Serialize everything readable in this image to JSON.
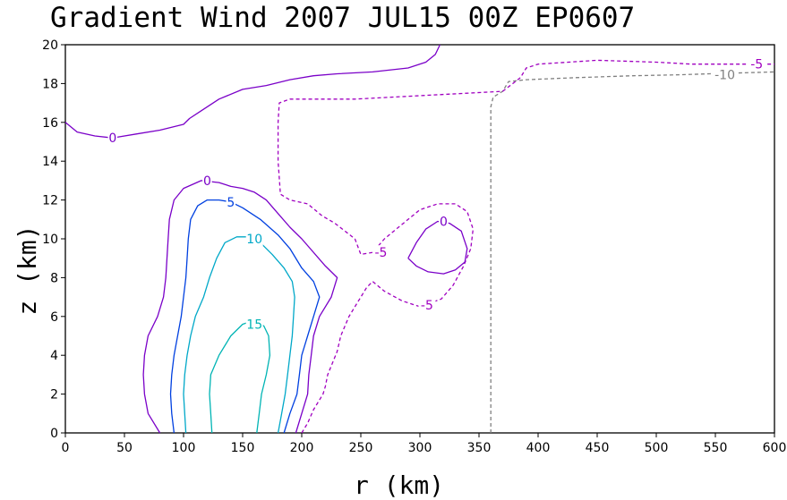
{
  "chart_data": {
    "type": "contour",
    "title": "Gradient Wind 2007 JUL15 00Z  EP0607",
    "xlabel": "r (km)",
    "ylabel": "z (km)",
    "xlim": [
      0,
      600
    ],
    "ylim": [
      0,
      20
    ],
    "x_ticks": [
      "0",
      "50",
      "100",
      "150",
      "200",
      "250",
      "300",
      "350",
      "400",
      "450",
      "500",
      "550",
      "600"
    ],
    "y_ticks": [
      "0",
      "2",
      "4",
      "6",
      "8",
      "10",
      "12",
      "14",
      "16",
      "18",
      "20"
    ],
    "grid": false,
    "contours": [
      {
        "level": "-10",
        "color": "#808080",
        "dashed": true,
        "points": [
          [
            360,
            0
          ],
          [
            360,
            16.8
          ],
          [
            362,
            17.3
          ],
          [
            370,
            17.6
          ],
          [
            375,
            18.1
          ],
          [
            390,
            18.2
          ],
          [
            430,
            18.3
          ],
          [
            480,
            18.4
          ],
          [
            520,
            18.45
          ],
          [
            545,
            18.5
          ],
          [
            600,
            18.6
          ]
        ],
        "label": {
          "text": "-10",
          "at": [
            558,
            18.45
          ]
        }
      },
      {
        "level": "-5",
        "color": "#a000c0",
        "dashed": true,
        "points": [
          [
            200,
            0
          ],
          [
            205,
            0.5
          ],
          [
            210,
            1.2
          ],
          [
            218,
            2.0
          ],
          [
            220,
            2.4
          ],
          [
            222,
            3.0
          ],
          [
            230,
            4.2
          ],
          [
            233,
            5.0
          ],
          [
            240,
            6.0
          ],
          [
            245,
            6.5
          ],
          [
            255,
            7.5
          ],
          [
            260,
            7.8
          ],
          [
            270,
            7.3
          ],
          [
            285,
            6.8
          ],
          [
            300,
            6.5
          ],
          [
            318,
            6.9
          ],
          [
            328,
            7.6
          ],
          [
            337,
            8.6
          ],
          [
            343,
            9.5
          ],
          [
            345,
            10.5
          ],
          [
            340,
            11.4
          ],
          [
            330,
            11.8
          ],
          [
            315,
            11.8
          ],
          [
            300,
            11.5
          ],
          [
            280,
            10.5
          ],
          [
            270,
            10.0
          ],
          [
            260,
            9.3
          ],
          [
            250,
            9.2
          ],
          [
            245,
            10.0
          ],
          [
            228,
            10.8
          ],
          [
            217,
            11.2
          ],
          [
            205,
            11.8
          ],
          [
            190,
            12.0
          ],
          [
            182,
            12.3
          ],
          [
            180,
            14.0
          ],
          [
            180,
            16.0
          ],
          [
            181,
            17.0
          ],
          [
            190,
            17.2
          ],
          [
            245,
            17.2
          ],
          [
            370,
            17.6
          ],
          [
            385,
            18.3
          ],
          [
            390,
            18.8
          ],
          [
            400,
            19.0
          ],
          [
            450,
            19.2
          ],
          [
            500,
            19.1
          ],
          [
            530,
            19.0
          ],
          [
            550,
            19.0
          ],
          [
            600,
            19.0
          ]
        ],
        "label": {
          "text": "-5",
          "at": [
            585,
            19.0
          ]
        }
      },
      {
        "level": "-5",
        "color": "#a000c0",
        "dashed": true,
        "points": [],
        "label": {
          "text": "-5",
          "at": [
            267,
            9.3
          ]
        }
      },
      {
        "level": "-5",
        "color": "#a000c0",
        "dashed": true,
        "points": [],
        "label": {
          "text": "-5",
          "at": [
            306,
            6.6
          ]
        }
      },
      {
        "level": "0",
        "color": "#7a00c8",
        "dashed": false,
        "points": [
          [
            0,
            16.0
          ],
          [
            10,
            15.5
          ],
          [
            25,
            15.3
          ],
          [
            40,
            15.2
          ],
          [
            60,
            15.4
          ],
          [
            80,
            15.6
          ],
          [
            100,
            15.9
          ],
          [
            105,
            16.2
          ],
          [
            115,
            16.6
          ],
          [
            130,
            17.2
          ],
          [
            150,
            17.7
          ],
          [
            170,
            17.9
          ],
          [
            190,
            18.2
          ],
          [
            210,
            18.4
          ],
          [
            230,
            18.5
          ],
          [
            260,
            18.6
          ],
          [
            290,
            18.8
          ],
          [
            305,
            19.1
          ],
          [
            313,
            19.5
          ],
          [
            317,
            20.0
          ]
        ],
        "label": {
          "text": "0",
          "at": [
            40,
            15.2
          ]
        }
      },
      {
        "level": "0",
        "color": "#7a00c8",
        "dashed": false,
        "points": [
          [
            80,
            0
          ],
          [
            70,
            1.0
          ],
          [
            67,
            2.0
          ],
          [
            66,
            3.0
          ],
          [
            67,
            4.0
          ],
          [
            70,
            5.0
          ],
          [
            78,
            6.0
          ],
          [
            83,
            7.0
          ],
          [
            85,
            8.0
          ],
          [
            86,
            9.0
          ],
          [
            87,
            10.0
          ],
          [
            88,
            11.0
          ],
          [
            92,
            12.0
          ],
          [
            100,
            12.6
          ],
          [
            115,
            13.0
          ],
          [
            130,
            12.9
          ],
          [
            140,
            12.7
          ],
          [
            150,
            12.6
          ],
          [
            160,
            12.4
          ],
          [
            170,
            12.0
          ],
          [
            180,
            11.3
          ],
          [
            190,
            10.6
          ],
          [
            200,
            10.0
          ],
          [
            220,
            8.6
          ],
          [
            230,
            8.0
          ],
          [
            225,
            7.0
          ],
          [
            215,
            6.0
          ],
          [
            210,
            5.0
          ],
          [
            208,
            4.0
          ],
          [
            206,
            3.0
          ],
          [
            205,
            2.0
          ],
          [
            200,
            1.0
          ],
          [
            195,
            0
          ]
        ],
        "label": {
          "text": "0",
          "at": [
            120,
            13.0
          ]
        }
      },
      {
        "level": "0",
        "color": "#7a00c8",
        "dashed": false,
        "points": [
          [
            290,
            9.0
          ],
          [
            297,
            9.8
          ],
          [
            305,
            10.5
          ],
          [
            315,
            10.9
          ],
          [
            325,
            10.8
          ],
          [
            335,
            10.4
          ],
          [
            340,
            9.5
          ],
          [
            338,
            8.8
          ],
          [
            330,
            8.4
          ],
          [
            320,
            8.2
          ],
          [
            307,
            8.3
          ],
          [
            297,
            8.6
          ],
          [
            290,
            9.0
          ]
        ],
        "label": {
          "text": "0",
          "at": [
            320,
            10.9
          ]
        }
      },
      {
        "level": "5",
        "color": "#0040e0",
        "dashed": false,
        "points": [
          [
            92,
            0
          ],
          [
            90,
            1.0
          ],
          [
            89,
            2.0
          ],
          [
            90,
            3.0
          ],
          [
            92,
            4.0
          ],
          [
            95,
            5.0
          ],
          [
            98,
            6.0
          ],
          [
            100,
            7.0
          ],
          [
            102,
            8.0
          ],
          [
            103,
            9.0
          ],
          [
            104,
            10.0
          ],
          [
            106,
            11.0
          ],
          [
            112,
            11.7
          ],
          [
            120,
            12.0
          ],
          [
            130,
            12.0
          ],
          [
            140,
            11.9
          ],
          [
            150,
            11.6
          ],
          [
            165,
            11.0
          ],
          [
            180,
            10.2
          ],
          [
            190,
            9.5
          ],
          [
            200,
            8.5
          ],
          [
            210,
            7.8
          ],
          [
            215,
            7.0
          ],
          [
            210,
            6.0
          ],
          [
            205,
            5.0
          ],
          [
            200,
            4.0
          ],
          [
            198,
            3.0
          ],
          [
            196,
            2.0
          ],
          [
            190,
            1.0
          ],
          [
            185,
            0
          ]
        ],
        "label": {
          "text": "5",
          "at": [
            140,
            11.9
          ]
        }
      },
      {
        "level": "10",
        "color": "#00a8c8",
        "dashed": false,
        "points": [
          [
            102,
            0
          ],
          [
            101,
            1.0
          ],
          [
            100,
            2.0
          ],
          [
            101,
            3.0
          ],
          [
            103,
            4.0
          ],
          [
            106,
            5.0
          ],
          [
            110,
            6.0
          ],
          [
            117,
            7.0
          ],
          [
            122,
            8.0
          ],
          [
            128,
            9.0
          ],
          [
            135,
            9.8
          ],
          [
            145,
            10.1
          ],
          [
            155,
            10.1
          ],
          [
            165,
            9.8
          ],
          [
            175,
            9.2
          ],
          [
            185,
            8.5
          ],
          [
            192,
            7.8
          ],
          [
            194,
            7.0
          ],
          [
            193,
            6.0
          ],
          [
            192,
            5.0
          ],
          [
            190,
            4.0
          ],
          [
            188,
            3.0
          ],
          [
            186,
            2.0
          ],
          [
            183,
            1.0
          ],
          [
            180,
            0
          ]
        ],
        "label": {
          "text": "10",
          "at": [
            160,
            10.0
          ]
        }
      },
      {
        "level": "15",
        "color": "#00b4b4",
        "dashed": false,
        "points": [
          [
            124,
            0
          ],
          [
            123,
            1.0
          ],
          [
            122,
            2.0
          ],
          [
            123,
            3.0
          ],
          [
            130,
            4.0
          ],
          [
            135,
            4.5
          ],
          [
            140,
            5.0
          ],
          [
            150,
            5.6
          ],
          [
            160,
            5.8
          ],
          [
            168,
            5.5
          ],
          [
            172,
            5.0
          ],
          [
            173,
            4.0
          ],
          [
            170,
            3.0
          ],
          [
            166,
            2.0
          ],
          [
            164,
            1.0
          ],
          [
            162,
            0
          ]
        ],
        "label": {
          "text": "15",
          "at": [
            160,
            5.6
          ]
        }
      }
    ]
  }
}
